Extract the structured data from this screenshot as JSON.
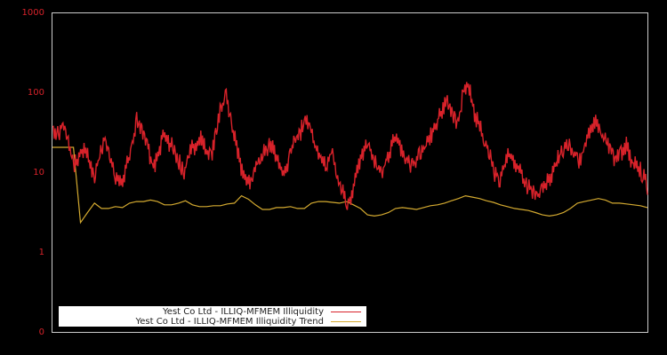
{
  "chart_data": {
    "type": "line",
    "title": "",
    "xlabel": "",
    "ylabel": "",
    "yscale": "log",
    "ylim": [
      0.1,
      1000
    ],
    "yticks": [
      {
        "label": "1000",
        "value": 1000
      },
      {
        "label": "100",
        "value": 100
      },
      {
        "label": "10",
        "value": 10
      },
      {
        "label": "1",
        "value": 1
      },
      {
        "label": "0",
        "value": 0.1
      }
    ],
    "grid": false,
    "legend_position": "lower-left",
    "colors": {
      "background": "#000000",
      "axis": "#cccccc",
      "tick_label": "#d8222a",
      "series1": "#d8222a",
      "series2": "#d4aa30"
    },
    "x_points": 60,
    "series": [
      {
        "name": "Yest Co Ltd - ILLIQ-MFMEM Illiquidity",
        "color": "#d8222a",
        "values": [
          38,
          30,
          42,
          25,
          12,
          16,
          20,
          14,
          9,
          18,
          28,
          14,
          9,
          7,
          12,
          20,
          45,
          35,
          22,
          12,
          15,
          30,
          25,
          20,
          14,
          10,
          18,
          22,
          28,
          20,
          15,
          30,
          65,
          100,
          40,
          22,
          10,
          7,
          9,
          14,
          18,
          22,
          20,
          14,
          10,
          15,
          25,
          30,
          50,
          35,
          20,
          16,
          12,
          20,
          10,
          6,
          4,
          6,
          12,
          18,
          22,
          15,
          10,
          12,
          18,
          28,
          22,
          16,
          12,
          14,
          18,
          25,
          30,
          45,
          60,
          80,
          55,
          40,
          100,
          130,
          60,
          40,
          28,
          18,
          10,
          8,
          14,
          18,
          12,
          10,
          7,
          6,
          5,
          6,
          8,
          10,
          15,
          20,
          25,
          18,
          14,
          22,
          35,
          45,
          30,
          25,
          20,
          14,
          18,
          22,
          14,
          12,
          10,
          7
        ]
      },
      {
        "name": "Yest Co Ltd - ILLIQ-MFMEM Illiquidity Trend",
        "color": "#d4aa30",
        "values": [
          21,
          21,
          21,
          21,
          2.4,
          3.2,
          4.2,
          3.6,
          3.6,
          3.8,
          3.7,
          4.2,
          4.4,
          4.4,
          4.6,
          4.4,
          4.0,
          4.0,
          4.2,
          4.5,
          4.0,
          3.8,
          3.8,
          3.9,
          3.9,
          4.1,
          4.2,
          5.2,
          4.7,
          4.0,
          3.5,
          3.5,
          3.7,
          3.7,
          3.8,
          3.6,
          3.6,
          4.2,
          4.4,
          4.4,
          4.3,
          4.2,
          4.4,
          4.0,
          3.6,
          3.0,
          2.9,
          3.0,
          3.2,
          3.6,
          3.7,
          3.6,
          3.5,
          3.7,
          3.9,
          4.0,
          4.2,
          4.5,
          4.8,
          5.2,
          5.0,
          4.8,
          4.5,
          4.3,
          4.0,
          3.8,
          3.6,
          3.5,
          3.4,
          3.2,
          3.0,
          2.9,
          3.0,
          3.2,
          3.6,
          4.2,
          4.4,
          4.6,
          4.8,
          4.6,
          4.2,
          4.2,
          4.1,
          4.0,
          3.9,
          3.7
        ]
      }
    ]
  },
  "legend": {
    "items": [
      {
        "label": "Yest Co Ltd - ILLIQ-MFMEM Illiquidity",
        "color": "#d8222a"
      },
      {
        "label": "Yest Co Ltd - ILLIQ-MFMEM Illiquidity Trend",
        "color": "#d4aa30"
      }
    ]
  }
}
